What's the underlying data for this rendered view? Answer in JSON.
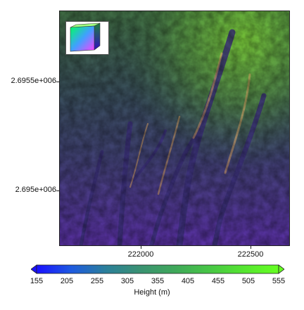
{
  "map": {
    "y_axis": {
      "ticks": [
        "2.6955e+006",
        "2.695e+006"
      ]
    },
    "x_axis": {
      "ticks": [
        "222000",
        "222500"
      ]
    },
    "inset": {
      "description_icon": "rgb-color-cube-icon"
    }
  },
  "colorbar": {
    "title": "Height (m)",
    "range": [
      155,
      555
    ],
    "ticks": [
      "155",
      "205",
      "255",
      "305",
      "355",
      "405",
      "455",
      "505",
      "555"
    ],
    "colors": [
      "#1a10ff",
      "#1d5ae0",
      "#2b7f9a",
      "#3a9272",
      "#3fa85a",
      "#47c645",
      "#55e630",
      "#66ff22"
    ]
  }
}
